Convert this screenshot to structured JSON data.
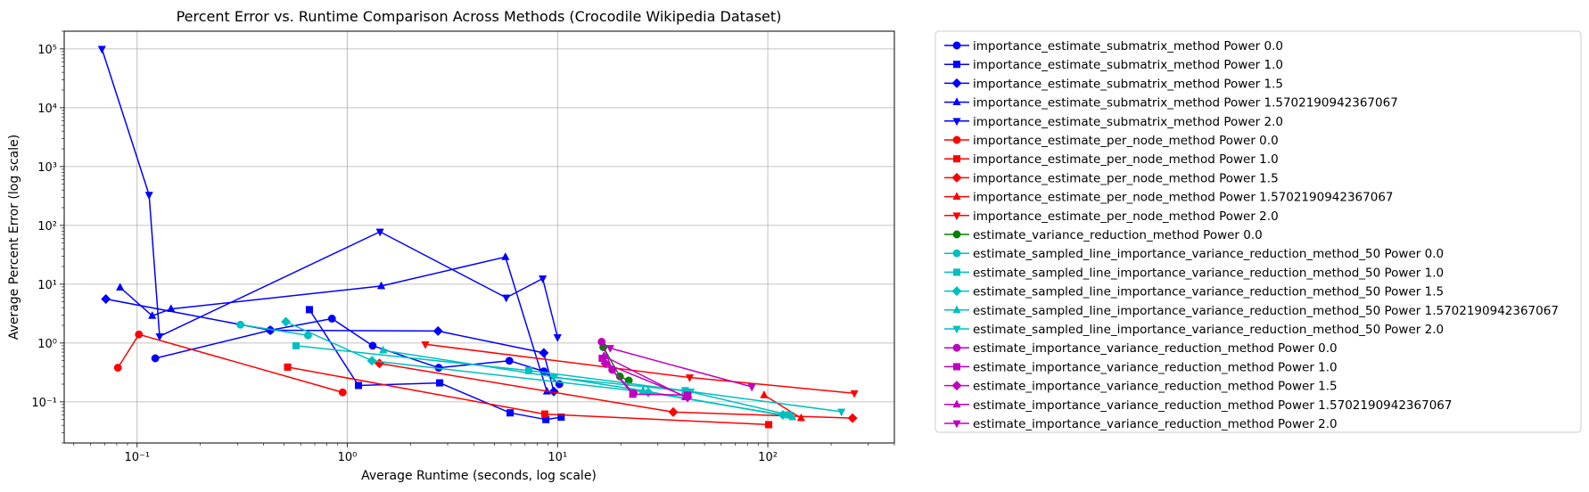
{
  "chart_data": {
    "type": "line",
    "title": "Percent Error vs. Runtime Comparison Across Methods (Crocodile Wikipedia Dataset)",
    "xlabel": "Average Runtime (seconds, log scale)",
    "ylabel": "Average Percent Error (log scale)",
    "x_scale": "log",
    "y_scale": "log",
    "xlim": [
      0.045,
      400
    ],
    "ylim": [
      0.02,
      200000
    ],
    "x_ticks": [
      {
        "value": 0.1,
        "label": "10⁻¹"
      },
      {
        "value": 1,
        "label": "10⁰"
      },
      {
        "value": 10,
        "label": "10¹"
      },
      {
        "value": 100,
        "label": "10²"
      }
    ],
    "y_ticks": [
      {
        "value": 0.1,
        "label": "10⁻¹"
      },
      {
        "value": 1,
        "label": "10⁰"
      },
      {
        "value": 10,
        "label": "10¹"
      },
      {
        "value": 100,
        "label": "10²"
      },
      {
        "value": 1000,
        "label": "10³"
      },
      {
        "value": 10000,
        "label": "10⁴"
      },
      {
        "value": 100000,
        "label": "10⁵"
      }
    ],
    "grid": true,
    "legend_position": "outside-right",
    "series": [
      {
        "name": "importance_estimate_submatrix_method Power 0.0",
        "color": "#0000ff",
        "marker": "o",
        "x": [
          0.122,
          0.43,
          0.845,
          1.32,
          2.72,
          5.9,
          8.6,
          10.2
        ],
        "y": [
          0.55,
          1.65,
          2.6,
          0.9,
          0.38,
          0.5,
          0.33,
          0.2
        ]
      },
      {
        "name": "importance_estimate_submatrix_method Power 1.0",
        "color": "#0000ff",
        "marker": "s",
        "x": [
          0.66,
          1.13,
          2.75,
          5.95,
          8.8,
          10.4
        ],
        "y": [
          3.7,
          0.19,
          0.21,
          0.065,
          0.05,
          0.055
        ]
      },
      {
        "name": "importance_estimate_submatrix_method Power 1.5",
        "color": "#0000ff",
        "marker": "D",
        "x": [
          0.071,
          0.43,
          2.7,
          8.6,
          9.6
        ],
        "y": [
          5.6,
          1.65,
          1.6,
          0.68,
          0.15
        ]
      },
      {
        "name": "importance_estimate_submatrix_method Power 1.5702190942367067",
        "color": "#0000ff",
        "marker": "^",
        "x": [
          0.083,
          0.118,
          0.145,
          1.45,
          5.65,
          8.9
        ],
        "y": [
          8.8,
          2.9,
          3.8,
          9.3,
          29,
          0.15
        ]
      },
      {
        "name": "importance_estimate_submatrix_method Power 2.0",
        "color": "#0000ff",
        "marker": "v",
        "x": [
          0.068,
          0.114,
          0.128,
          1.43,
          5.7,
          8.5,
          10.0
        ],
        "y": [
          100000,
          330,
          1.3,
          78,
          5.9,
          12.5,
          1.25
        ]
      },
      {
        "name": "importance_estimate_per_node_method Power 0.0",
        "color": "#ff0000",
        "marker": "o",
        "x": [
          0.081,
          0.102,
          0.95
        ],
        "y": [
          0.38,
          1.4,
          0.145
        ]
      },
      {
        "name": "importance_estimate_per_node_method Power 1.0",
        "color": "#ff0000",
        "marker": "s",
        "x": [
          0.52,
          8.7,
          101
        ],
        "y": [
          0.39,
          0.062,
          0.041
        ]
      },
      {
        "name": "importance_estimate_per_node_method Power 1.5",
        "color": "#ff0000",
        "marker": "D",
        "x": [
          1.42,
          35.5,
          253
        ],
        "y": [
          0.45,
          0.067,
          0.053
        ]
      },
      {
        "name": "importance_estimate_per_node_method Power 1.5702190942367067",
        "color": "#ff0000",
        "marker": "^",
        "x": [
          96,
          144
        ],
        "y": [
          0.13,
          0.053
        ]
      },
      {
        "name": "importance_estimate_per_node_method Power 2.0",
        "color": "#ff0000",
        "marker": "v",
        "x": [
          2.35,
          42.5,
          258
        ],
        "y": [
          0.95,
          0.26,
          0.14
        ]
      },
      {
        "name": "estimate_variance_reduction_method Power 0.0",
        "color": "#008000",
        "marker": "o",
        "x": [
          16.5,
          19.8,
          21.8
        ],
        "y": [
          0.85,
          0.27,
          0.23
        ]
      },
      {
        "name": "estimate_sampled_line_importance_variance_reduction_method_50 Power 0.0",
        "color": "#00bfbf",
        "marker": "o",
        "x": [
          0.31,
          0.65
        ],
        "y": [
          2.05,
          1.35
        ]
      },
      {
        "name": "estimate_sampled_line_importance_variance_reduction_method_50 Power 1.0",
        "color": "#00bfbf",
        "marker": "s",
        "x": [
          0.57,
          7.3,
          40.5,
          126
        ],
        "y": [
          0.9,
          0.34,
          0.155,
          0.06
        ]
      },
      {
        "name": "estimate_sampled_line_importance_variance_reduction_method_50 Power 1.5",
        "color": "#00bfbf",
        "marker": "D",
        "x": [
          0.51,
          1.31,
          27,
          118
        ],
        "y": [
          2.3,
          0.5,
          0.145,
          0.06
        ]
      },
      {
        "name": "estimate_sampled_line_importance_variance_reduction_method_50 Power 1.5702190942367067",
        "color": "#00bfbf",
        "marker": "^",
        "x": [
          1.48,
          25.5,
          131
        ],
        "y": [
          0.75,
          0.155,
          0.055
        ]
      },
      {
        "name": "estimate_sampled_line_importance_variance_reduction_method_50 Power 2.0",
        "color": "#00bfbf",
        "marker": "v",
        "x": [
          9.6,
          43,
          224
        ],
        "y": [
          0.26,
          0.15,
          0.068
        ]
      },
      {
        "name": "estimate_importance_variance_reduction_method Power 0.0",
        "color": "#bf00bf",
        "marker": "o",
        "x": [
          16.2,
          18.2,
          23
        ],
        "y": [
          1.05,
          0.35,
          0.14
        ]
      },
      {
        "name": "estimate_importance_variance_reduction_method Power 1.0",
        "color": "#bf00bf",
        "marker": "s",
        "x": [
          16.3,
          22.8,
          41.5
        ],
        "y": [
          0.55,
          0.135,
          0.13
        ]
      },
      {
        "name": "estimate_importance_variance_reduction_method Power 1.5",
        "color": "#bf00bf",
        "marker": "D",
        "x": [
          16.9,
          41.5
        ],
        "y": [
          0.45,
          0.12
        ]
      },
      {
        "name": "estimate_importance_variance_reduction_method Power 1.5702190942367067",
        "color": "#bf00bf",
        "marker": "^",
        "x": [
          16.6,
          40.5
        ],
        "y": [
          0.6,
          0.12
        ]
      },
      {
        "name": "estimate_importance_variance_reduction_method Power 2.0",
        "color": "#bf00bf",
        "marker": "v",
        "x": [
          17.8,
          84
        ],
        "y": [
          0.82,
          0.18
        ]
      }
    ]
  }
}
